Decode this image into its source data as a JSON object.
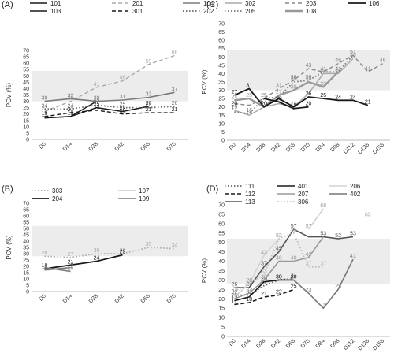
{
  "chart_data": [
    {
      "panel": "(A)",
      "type": "line",
      "ylabel": "PCV (%)",
      "ylim": [
        0,
        70
      ],
      "yticks": [
        0,
        5,
        10,
        15,
        20,
        25,
        30,
        35,
        40,
        45,
        50,
        55,
        60,
        65,
        70
      ],
      "categories": [
        "D0",
        "D14",
        "D28",
        "D42",
        "D56",
        "D70"
      ],
      "reference_band": [
        30,
        54
      ],
      "series": [
        {
          "name": "101",
          "color": "#1a1a1a",
          "dash": "",
          "width": 1.5,
          "values": [
            17,
            18,
            25,
            22,
            26,
            null
          ],
          "labels": [
            true,
            true,
            true,
            true,
            true,
            false
          ]
        },
        {
          "name": "103",
          "color": "#1a1a1a",
          "dash": "",
          "width": 1.5,
          "values": [
            17,
            18,
            30,
            null,
            null,
            null
          ],
          "labels": [
            false,
            false,
            false,
            false,
            false,
            false
          ]
        },
        {
          "name": "201",
          "color": "#aaaaaa",
          "dash": "5,3",
          "width": 1.4,
          "values": [
            22,
            30,
            41,
            46,
            59,
            66
          ],
          "labels": [
            true,
            true,
            true,
            true,
            true,
            true
          ]
        },
        {
          "name": "301",
          "color": "#1a1a1a",
          "dash": "5,3",
          "width": 1.4,
          "values": [
            18,
            21,
            23,
            20,
            21,
            21
          ],
          "labels": [
            true,
            true,
            true,
            true,
            true,
            true
          ]
        },
        {
          "name": "104",
          "color": "#7a7a7a",
          "dash": "",
          "width": 1.6,
          "values": [
            30,
            32,
            30,
            31,
            33,
            37
          ],
          "labels": [
            true,
            true,
            true,
            true,
            true,
            true
          ]
        },
        {
          "name": "202",
          "color": "#666666",
          "dash": "1.5,2.5",
          "width": 1.8,
          "values": [
            24,
            24,
            27,
            25,
            25,
            26
          ],
          "labels": [
            true,
            true,
            true,
            true,
            true,
            true
          ]
        }
      ]
    },
    {
      "panel": "(B)",
      "type": "line",
      "ylabel": "PCV (%)",
      "ylim": [
        0,
        70
      ],
      "yticks": [
        0,
        5,
        10,
        15,
        20,
        25,
        30,
        35,
        40,
        45,
        50,
        55,
        60,
        65,
        70
      ],
      "categories": [
        "D0",
        "D14",
        "D28",
        "D42",
        "D56",
        "D70"
      ],
      "reference_band": [
        28,
        52
      ],
      "series": [
        {
          "name": "303",
          "color": "#aaaaaa",
          "dash": "1.5,2.5",
          "width": 1.8,
          "values": [
            28,
            27,
            30,
            30,
            35,
            34
          ],
          "labels": [
            true,
            true,
            true,
            true,
            true,
            true
          ]
        },
        {
          "name": "204",
          "color": "#1a1a1a",
          "dash": "",
          "width": 1.8,
          "values": [
            18,
            21,
            24,
            29,
            null,
            null
          ],
          "labels": [
            true,
            true,
            true,
            true,
            false,
            false
          ]
        },
        {
          "name": "107",
          "color": "#cccccc",
          "dash": "",
          "width": 1.4,
          "values": [
            null,
            null,
            null,
            null,
            null,
            null
          ],
          "labels": [
            false,
            false,
            false,
            false,
            false,
            false
          ]
        },
        {
          "name": "109",
          "color": "#7a7a7a",
          "dash": "",
          "width": 1.6,
          "values": [
            17,
            19,
            null,
            null,
            null,
            null
          ],
          "labels": [
            true,
            true,
            false,
            false,
            false,
            false
          ]
        },
        {
          "name": "",
          "color": "#7a7a7a",
          "dash": "",
          "width": 1.6,
          "values": [
            19,
            16,
            null,
            null,
            null,
            null
          ],
          "labels": [
            false,
            true,
            false,
            false,
            false,
            false
          ]
        }
      ]
    },
    {
      "panel": "(C)",
      "type": "line",
      "ylabel": "PCV (%)",
      "ylim": [
        0,
        70
      ],
      "yticks": [
        0,
        5,
        10,
        15,
        20,
        25,
        30,
        35,
        40,
        45,
        50,
        55,
        60,
        65,
        70
      ],
      "categories": [
        "D0",
        "D14",
        "D28",
        "D42",
        "D56",
        "D70",
        "D84",
        "D98",
        "D112",
        "D126",
        "D156"
      ],
      "reference_band": [
        30,
        54
      ],
      "series": [
        {
          "name": "302",
          "color": "#aaaaaa",
          "dash": "",
          "width": 1.5,
          "values": [
            18,
            15,
            20,
            22,
            20,
            28,
            40,
            40,
            49,
            null,
            null
          ],
          "labels": [
            true,
            true,
            true,
            true,
            true,
            false,
            true,
            true,
            true,
            false,
            false
          ]
        },
        {
          "name": "205",
          "color": "#777777",
          "dash": "1.5,2.5",
          "width": 1.8,
          "values": [
            17,
            16,
            25,
            26,
            35,
            36,
            41,
            41,
            51,
            null,
            null
          ],
          "labels": [
            true,
            true,
            true,
            false,
            true,
            true,
            true,
            true,
            true,
            false,
            false
          ]
        },
        {
          "name": "203",
          "color": "#888888",
          "dash": "5,3",
          "width": 1.4,
          "values": [
            22,
            21,
            25,
            31,
            36,
            43,
            41,
            46,
            51,
            41,
            46
          ],
          "labels": [
            false,
            false,
            false,
            true,
            true,
            true,
            false,
            true,
            false,
            true,
            true
          ]
        },
        {
          "name": "108",
          "color": "#999999",
          "dash": "",
          "width": 2.4,
          "values": [
            24,
            25,
            20,
            27,
            30,
            35,
            32,
            41,
            null,
            null,
            null
          ],
          "labels": [
            true,
            true,
            false,
            true,
            true,
            true,
            true,
            false,
            false,
            false,
            false
          ]
        },
        {
          "name": "106",
          "color": "#1a1a1a",
          "dash": "",
          "width": 1.8,
          "values": [
            27,
            31,
            20,
            25,
            20,
            26,
            25,
            24,
            24,
            21,
            null
          ],
          "labels": [
            true,
            true,
            true,
            false,
            false,
            true,
            true,
            true,
            true,
            true,
            false
          ]
        },
        {
          "name": "",
          "color": "#1a1a1a",
          "dash": "",
          "width": 1.8,
          "values": [
            20,
            null,
            25,
            23,
            19,
            20,
            null,
            null,
            null,
            null,
            null
          ],
          "labels": [
            true,
            false,
            false,
            true,
            true,
            true,
            false,
            false,
            false,
            false,
            false
          ]
        }
      ]
    },
    {
      "panel": "(D)",
      "type": "line",
      "ylabel": "PCV (%)",
      "ylim": [
        0,
        70
      ],
      "yticks": [
        0,
        5,
        10,
        15,
        20,
        25,
        30,
        35,
        40,
        45,
        50,
        55,
        60,
        65,
        70
      ],
      "categories": [
        "D0",
        "D14",
        "D28",
        "D42",
        "D56",
        "D70",
        "D84",
        "D98",
        "D112",
        "D126",
        "D156"
      ],
      "reference_band": [
        28,
        52
      ],
      "series": [
        {
          "name": "111",
          "color": "#666666",
          "dash": "1.5,2.5",
          "width": 1.8,
          "values": [
            22,
            22,
            27,
            30,
            31,
            null,
            null,
            null,
            null,
            null,
            null
          ],
          "labels": [
            true,
            true,
            true,
            true,
            true,
            false,
            false,
            false,
            false,
            false,
            false
          ]
        },
        {
          "name": "112",
          "color": "#1a1a1a",
          "dash": "5,3",
          "width": 1.6,
          "values": [
            17,
            18,
            21,
            22,
            25,
            null,
            null,
            null,
            null,
            null,
            null
          ],
          "labels": [
            true,
            true,
            true,
            true,
            true,
            false,
            false,
            false,
            false,
            false,
            false
          ]
        },
        {
          "name": "113",
          "color": "#555555",
          "dash": "",
          "width": 1.6,
          "values": [
            26,
            26,
            37,
            45,
            57,
            53,
            53,
            52,
            53,
            null,
            null
          ],
          "labels": [
            true,
            true,
            true,
            true,
            true,
            false,
            true,
            true,
            true,
            false,
            false
          ]
        },
        {
          "name": "401",
          "color": "#1a1a1a",
          "dash": "",
          "width": 1.6,
          "values": [
            19,
            21,
            29,
            30,
            30,
            null,
            null,
            null,
            null,
            null,
            null
          ],
          "labels": [
            true,
            true,
            true,
            true,
            true,
            false,
            false,
            false,
            false,
            false,
            false
          ]
        },
        {
          "name": "207",
          "color": "#999999",
          "dash": "",
          "width": 1.6,
          "values": [
            20,
            23,
            30,
            40,
            40,
            42,
            53,
            null,
            null,
            null,
            null
          ],
          "labels": [
            true,
            true,
            true,
            true,
            true,
            true,
            false,
            false,
            false,
            false,
            false
          ]
        },
        {
          "name": "306",
          "color": "#bbbbbb",
          "dash": "1.5,2.5",
          "width": 1.8,
          "values": [
            24,
            28,
            33,
            52,
            55,
            37,
            37,
            null,
            null,
            null,
            null
          ],
          "labels": [
            true,
            true,
            true,
            true,
            true,
            true,
            true,
            false,
            false,
            false,
            false
          ]
        },
        {
          "name": "206",
          "color": "#d3d3d3",
          "dash": "",
          "width": 1.6,
          "values": [
            21,
            28,
            43,
            52,
            null,
            57,
            68,
            null,
            null,
            63,
            null
          ],
          "labels": [
            true,
            true,
            true,
            true,
            false,
            true,
            true,
            false,
            false,
            true,
            false
          ]
        },
        {
          "name": "402",
          "color": "#777777",
          "dash": "",
          "width": 1.6,
          "values": [
            null,
            null,
            null,
            null,
            30,
            23,
            15,
            25,
            41,
            null,
            null
          ],
          "labels": [
            false,
            false,
            false,
            false,
            false,
            true,
            true,
            true,
            true,
            false,
            false
          ]
        }
      ]
    }
  ]
}
